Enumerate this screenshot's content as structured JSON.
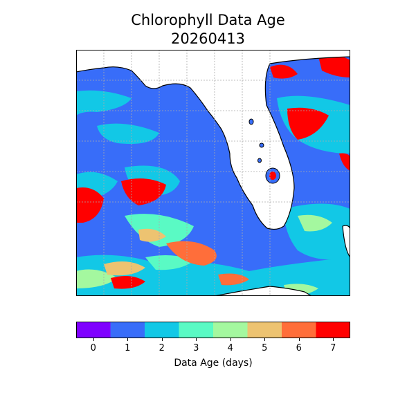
{
  "title_line1": "Chlorophyll Data Age",
  "title_line2": "20260413",
  "colorbar": {
    "label": "Data Age (days)",
    "ticks": [
      "0",
      "1",
      "2",
      "3",
      "4",
      "5",
      "6",
      "7"
    ],
    "colors": [
      "#7f00ff",
      "#386df9",
      "#12c8e6",
      "#5afac4",
      "#a4f89f",
      "#edc371",
      "#ff6e3a",
      "#ff0000"
    ]
  },
  "map": {
    "land_color": "#ffffff",
    "background_age_color": "#386df9",
    "grid": true
  }
}
